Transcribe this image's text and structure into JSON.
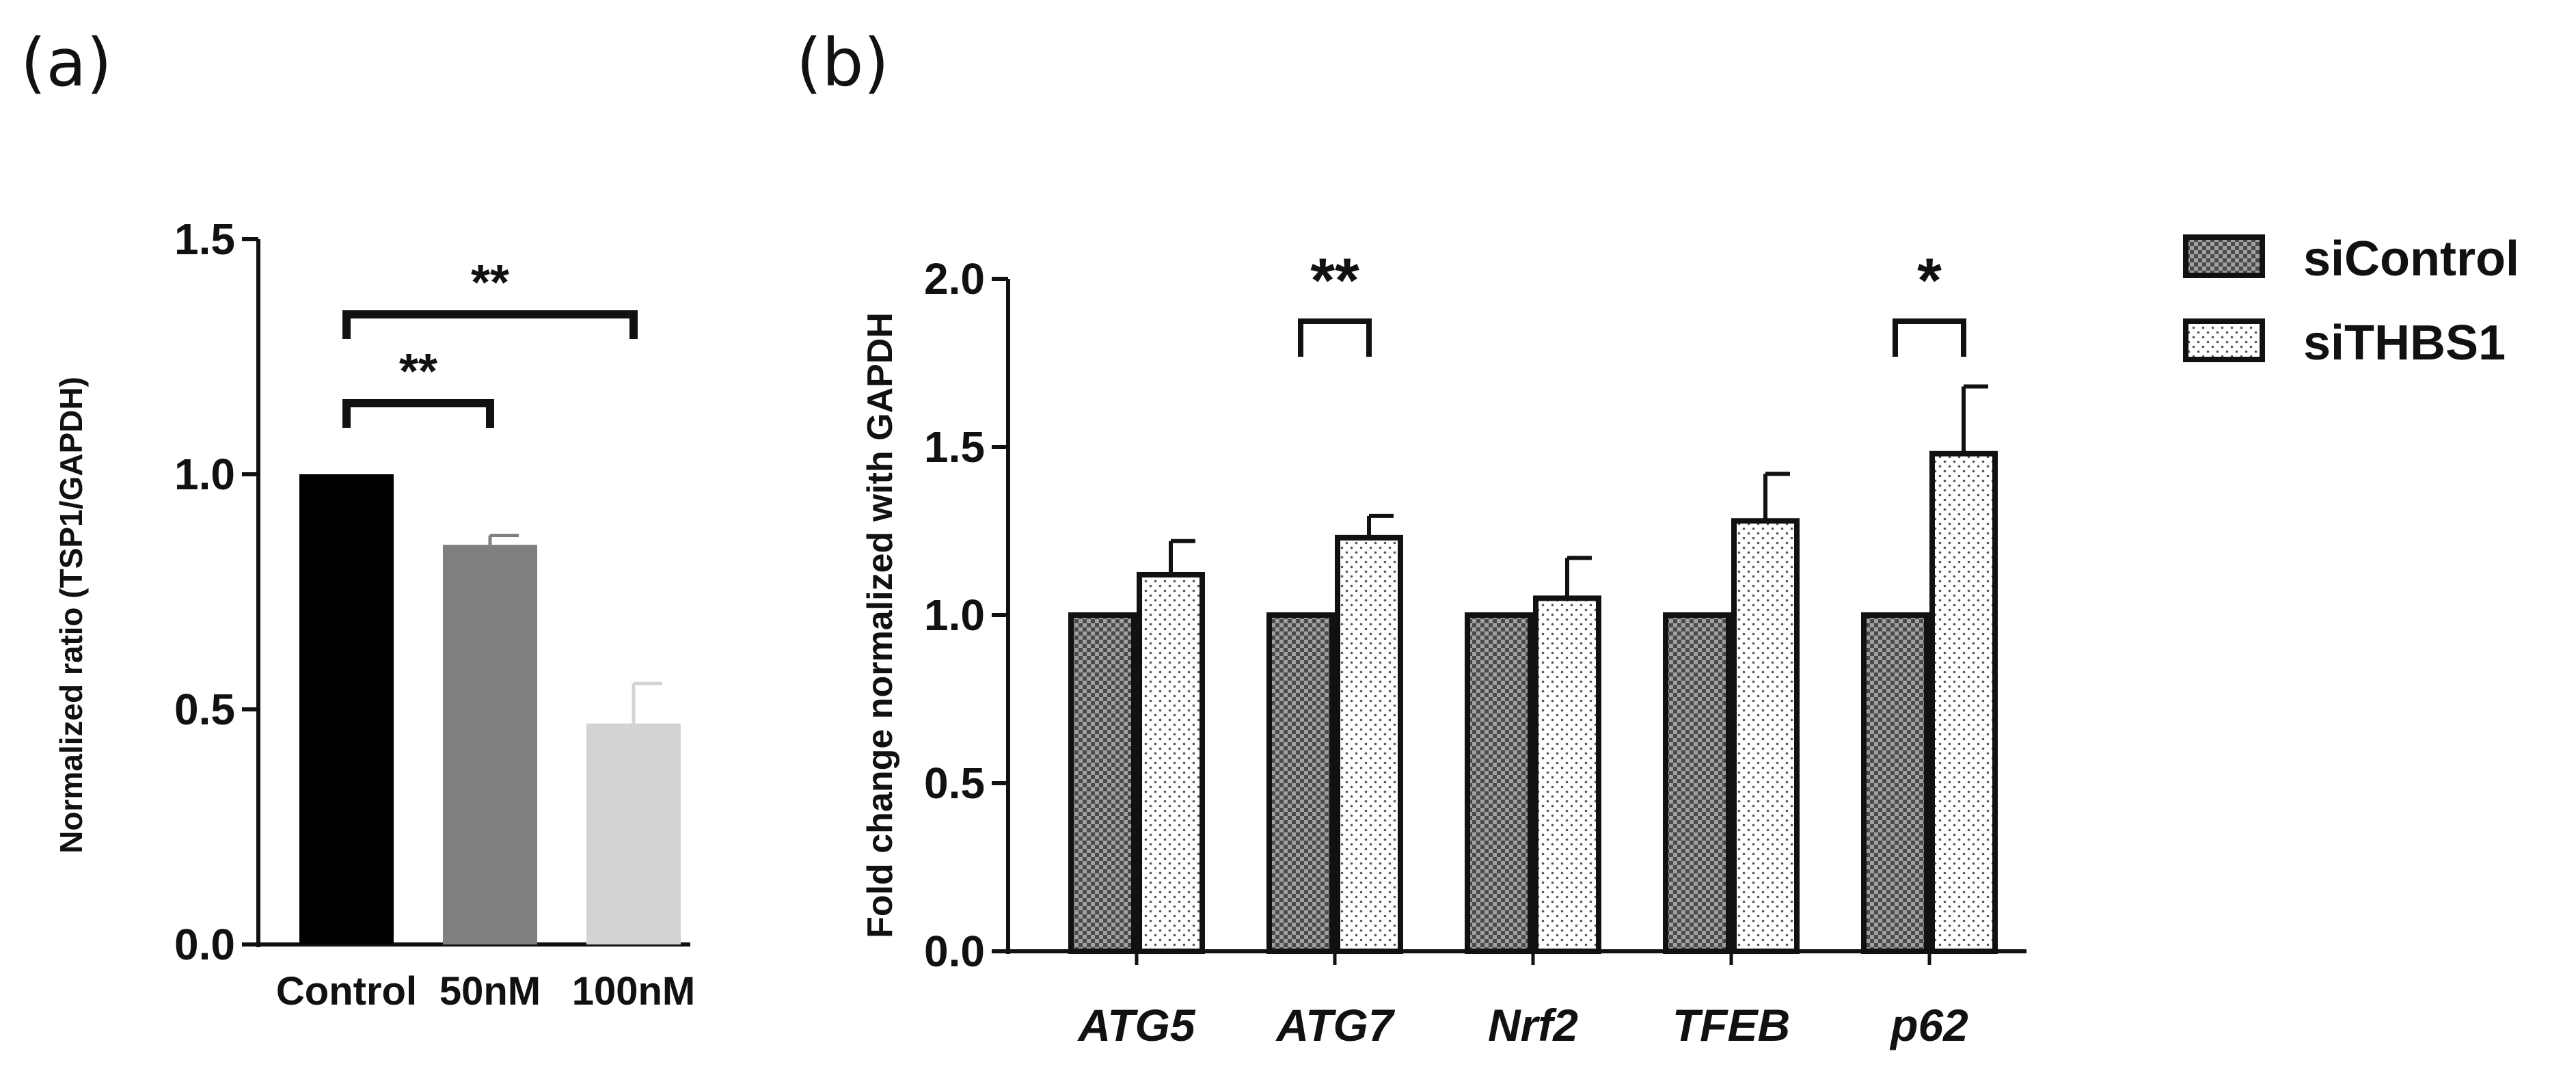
{
  "panels": {
    "a_label": "(a)",
    "b_label": "(b)"
  },
  "chart_data": [
    {
      "type": "bar",
      "title": "",
      "xlabel": "",
      "ylabel": "Normalized ratio (TSP1/GAPDH)",
      "ylim": [
        0,
        1.5
      ],
      "yticks": [
        "0.0",
        "0.5",
        "1.0",
        "1.5"
      ],
      "categories": [
        "Control",
        "50nM",
        "100nM"
      ],
      "values": [
        1.0,
        0.85,
        0.47
      ],
      "errors": [
        0,
        0.02,
        0.085
      ],
      "colors": [
        "#000000",
        "#7f7f7f",
        "#d3d3d3"
      ],
      "significance": [
        {
          "from": "Control",
          "to": "50nM",
          "label": "**"
        },
        {
          "from": "Control",
          "to": "100nM",
          "label": "**"
        }
      ]
    },
    {
      "type": "bar",
      "title": "",
      "xlabel": "",
      "ylabel": "Fold change normalized with GAPDH",
      "ylim": [
        0,
        2.0
      ],
      "yticks": [
        "0.0",
        "0.5",
        "1.0",
        "1.5",
        "2.0"
      ],
      "categories": [
        "ATG5",
        "ATG7",
        "Nrf2",
        "TFEB",
        "p62"
      ],
      "series": [
        {
          "name": "siControl",
          "values": [
            1.0,
            1.0,
            1.0,
            1.0,
            1.0
          ],
          "errors": [
            0,
            0,
            0,
            0,
            0
          ]
        },
        {
          "name": "siTHBS1",
          "values": [
            1.12,
            1.23,
            1.05,
            1.28,
            1.48
          ],
          "errors": [
            0.1,
            0.065,
            0.12,
            0.14,
            0.2
          ]
        }
      ],
      "significance": [
        {
          "category": "ATG7",
          "label": "**"
        },
        {
          "category": "p62",
          "label": "*"
        }
      ],
      "legend_position": "right"
    }
  ]
}
